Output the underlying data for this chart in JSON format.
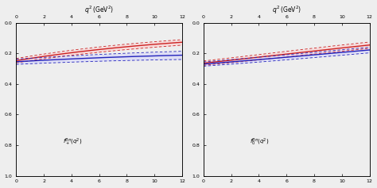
{
  "blue_color": "#2222bb",
  "red_color": "#cc2222",
  "pink_fill": "#ffbbbb",
  "blue_fill": "#bbbbff",
  "bg_color": "#eeeeee",
  "xlim": [
    0,
    12
  ],
  "ylim_inv": [
    1.0,
    0.0
  ],
  "yticks": [
    0.0,
    0.2,
    0.4,
    0.6,
    0.8,
    1.0
  ],
  "xticks": [
    0,
    2,
    4,
    6,
    8,
    10,
    12
  ],
  "xlabel": "$q^2\\,(\\mathrm{GeV}^2)$",
  "label_plus": "$f_+^{B\\pi}(q^2)$",
  "label_0": "$f_0^{B\\pi}(q^2)$"
}
